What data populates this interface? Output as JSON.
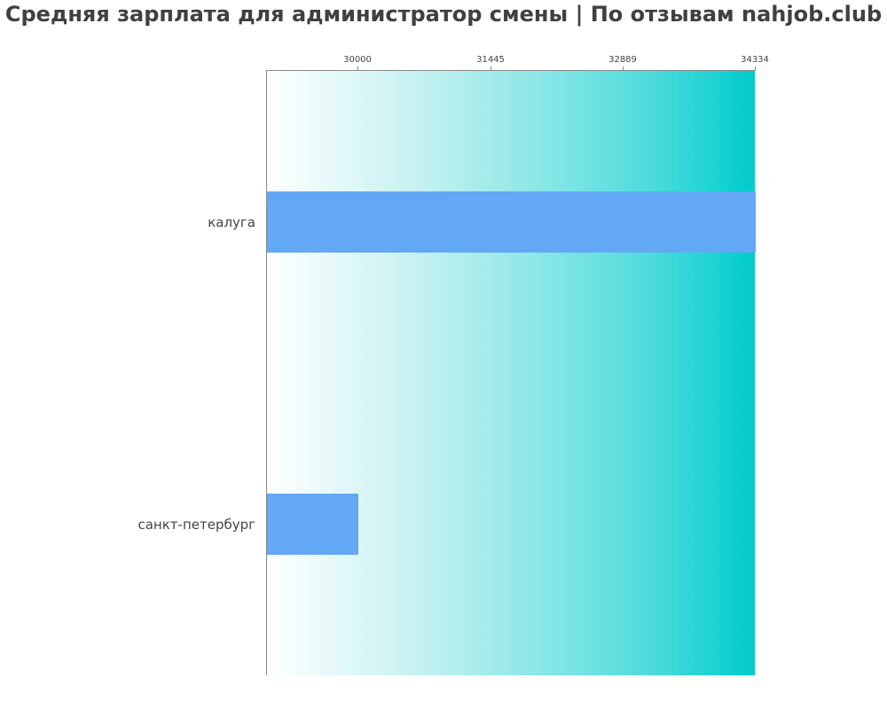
{
  "title": "Средняя зарплата для администратор смены | По отзывам nahjob.club",
  "colors": {
    "bar": "#63a8f5",
    "gradient_start": "#ffffff",
    "gradient_end": "#00cccc",
    "axis": "#888888",
    "text": "#444444"
  },
  "chart_data": {
    "type": "bar",
    "orientation": "horizontal",
    "title": "Средняя зарплата для администратор смены | По отзывам nahjob.club",
    "xlabel": "",
    "ylabel": "",
    "categories": [
      "калуга",
      "санкт-петербург"
    ],
    "values": [
      34334,
      30000
    ],
    "xlim": [
      29000,
      34334
    ],
    "xticks": [
      30000,
      31445,
      32889,
      34334
    ],
    "xtick_labels": [
      "30000",
      "31445",
      "32889",
      "34334"
    ],
    "xaxis_position": "top",
    "grid": false,
    "legend": null
  }
}
